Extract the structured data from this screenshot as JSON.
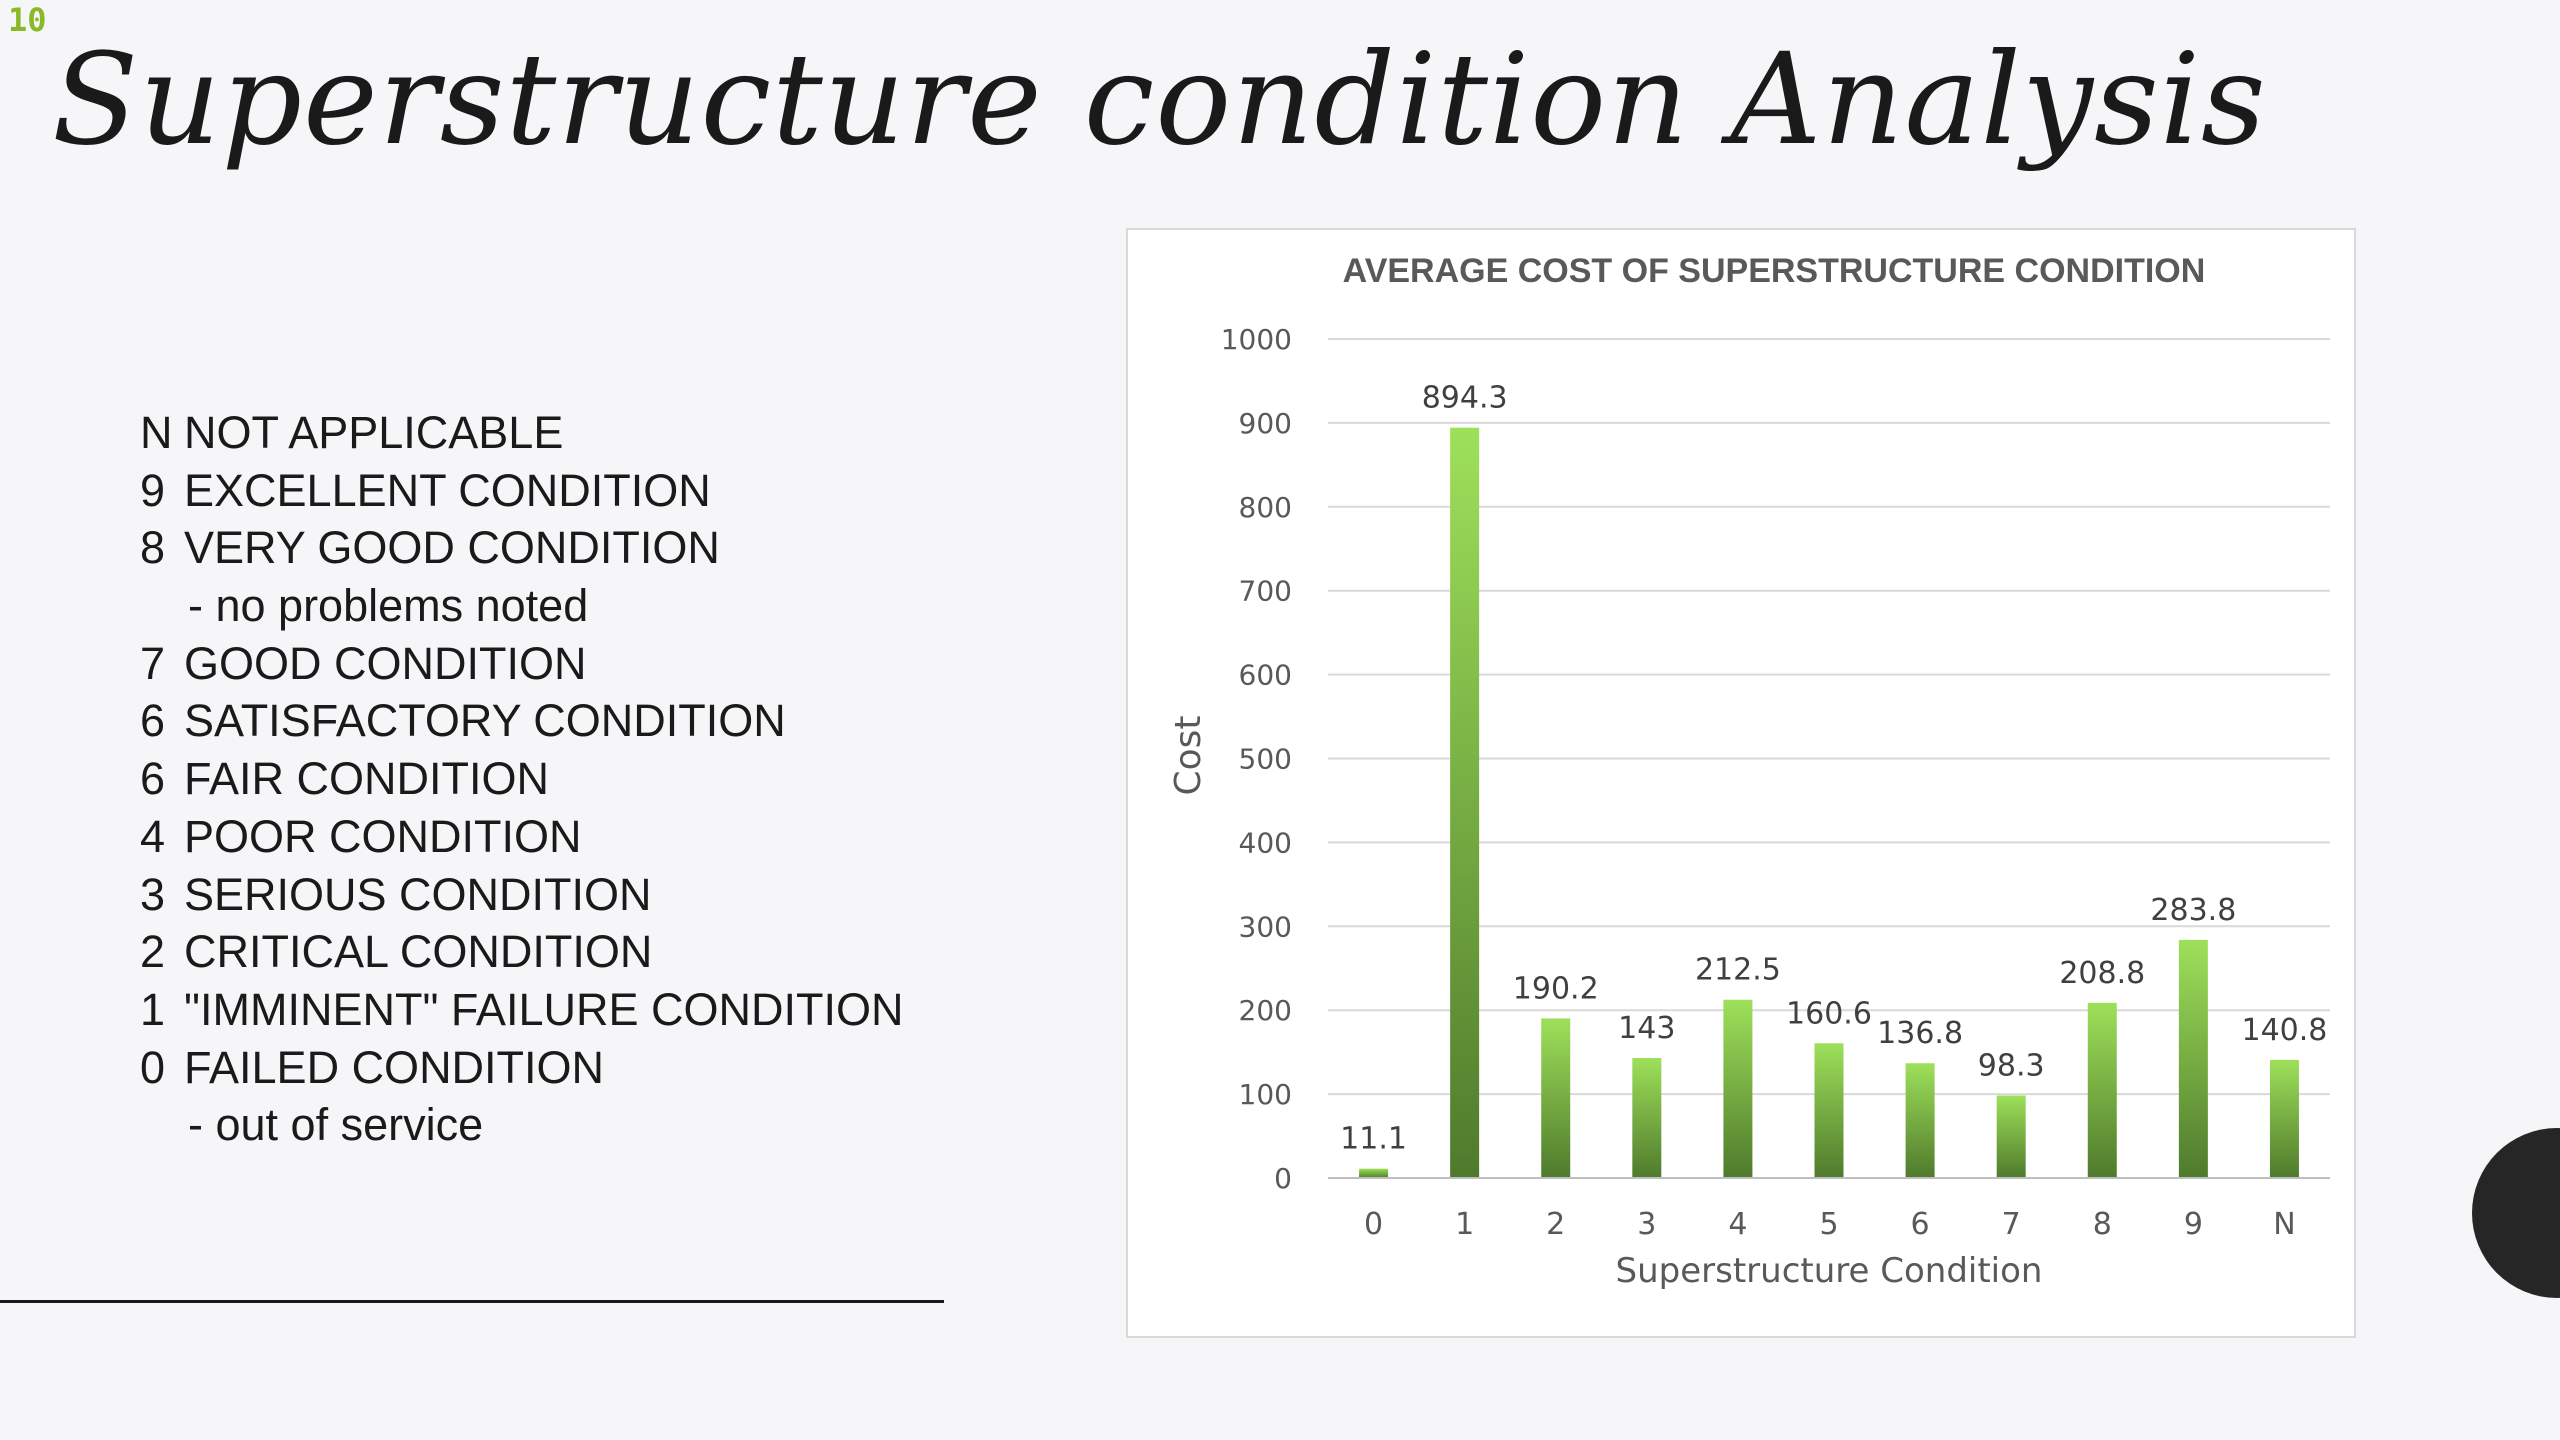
{
  "slide": {
    "number": "10"
  },
  "title": "Superstructure condition Analysis",
  "legend": [
    {
      "code": "N",
      "text": "NOT APPLICABLE"
    },
    {
      "code": "9",
      "text": "EXCELLENT CONDITION"
    },
    {
      "code": "8",
      "text": "VERY GOOD CONDITION"
    },
    {
      "code": "",
      "text": "- no problems noted"
    },
    {
      "code": "7",
      "text": "GOOD CONDITION"
    },
    {
      "code": "6",
      "text": "SATISFACTORY CONDITION"
    },
    {
      "code": "6",
      "text": "FAIR CONDITION"
    },
    {
      "code": "4",
      "text": "POOR CONDITION"
    },
    {
      "code": "3",
      "text": "SERIOUS CONDITION"
    },
    {
      "code": "2",
      "text": "CRITICAL CONDITION"
    },
    {
      "code": "1",
      "text": "\"IMMINENT\" FAILURE CONDITION"
    },
    {
      "code": "0",
      "text": "FAILED CONDITION"
    },
    {
      "code": "",
      "text": "- out of service"
    }
  ],
  "chart_data": {
    "type": "bar",
    "title": "AVERAGE COST OF SUPERSTRUCTURE CONDITION",
    "xlabel": "Superstructure Condition",
    "ylabel": "Cost",
    "categories": [
      "0",
      "1",
      "2",
      "3",
      "4",
      "5",
      "6",
      "7",
      "8",
      "9",
      "N"
    ],
    "values": [
      11.1,
      894.3,
      190.2,
      143,
      212.5,
      160.6,
      136.8,
      98.3,
      208.8,
      283.8,
      140.8
    ],
    "ylim": [
      0,
      1000
    ],
    "yticks": [
      0,
      100,
      200,
      300,
      400,
      500,
      600,
      700,
      800,
      900,
      1000
    ],
    "grid": true,
    "legend": "none",
    "colors": {
      "bar_top": "#9ee05a",
      "bar_bottom": "#4f7a2c",
      "grid": "#d9d9d9",
      "text": "#595959"
    }
  }
}
